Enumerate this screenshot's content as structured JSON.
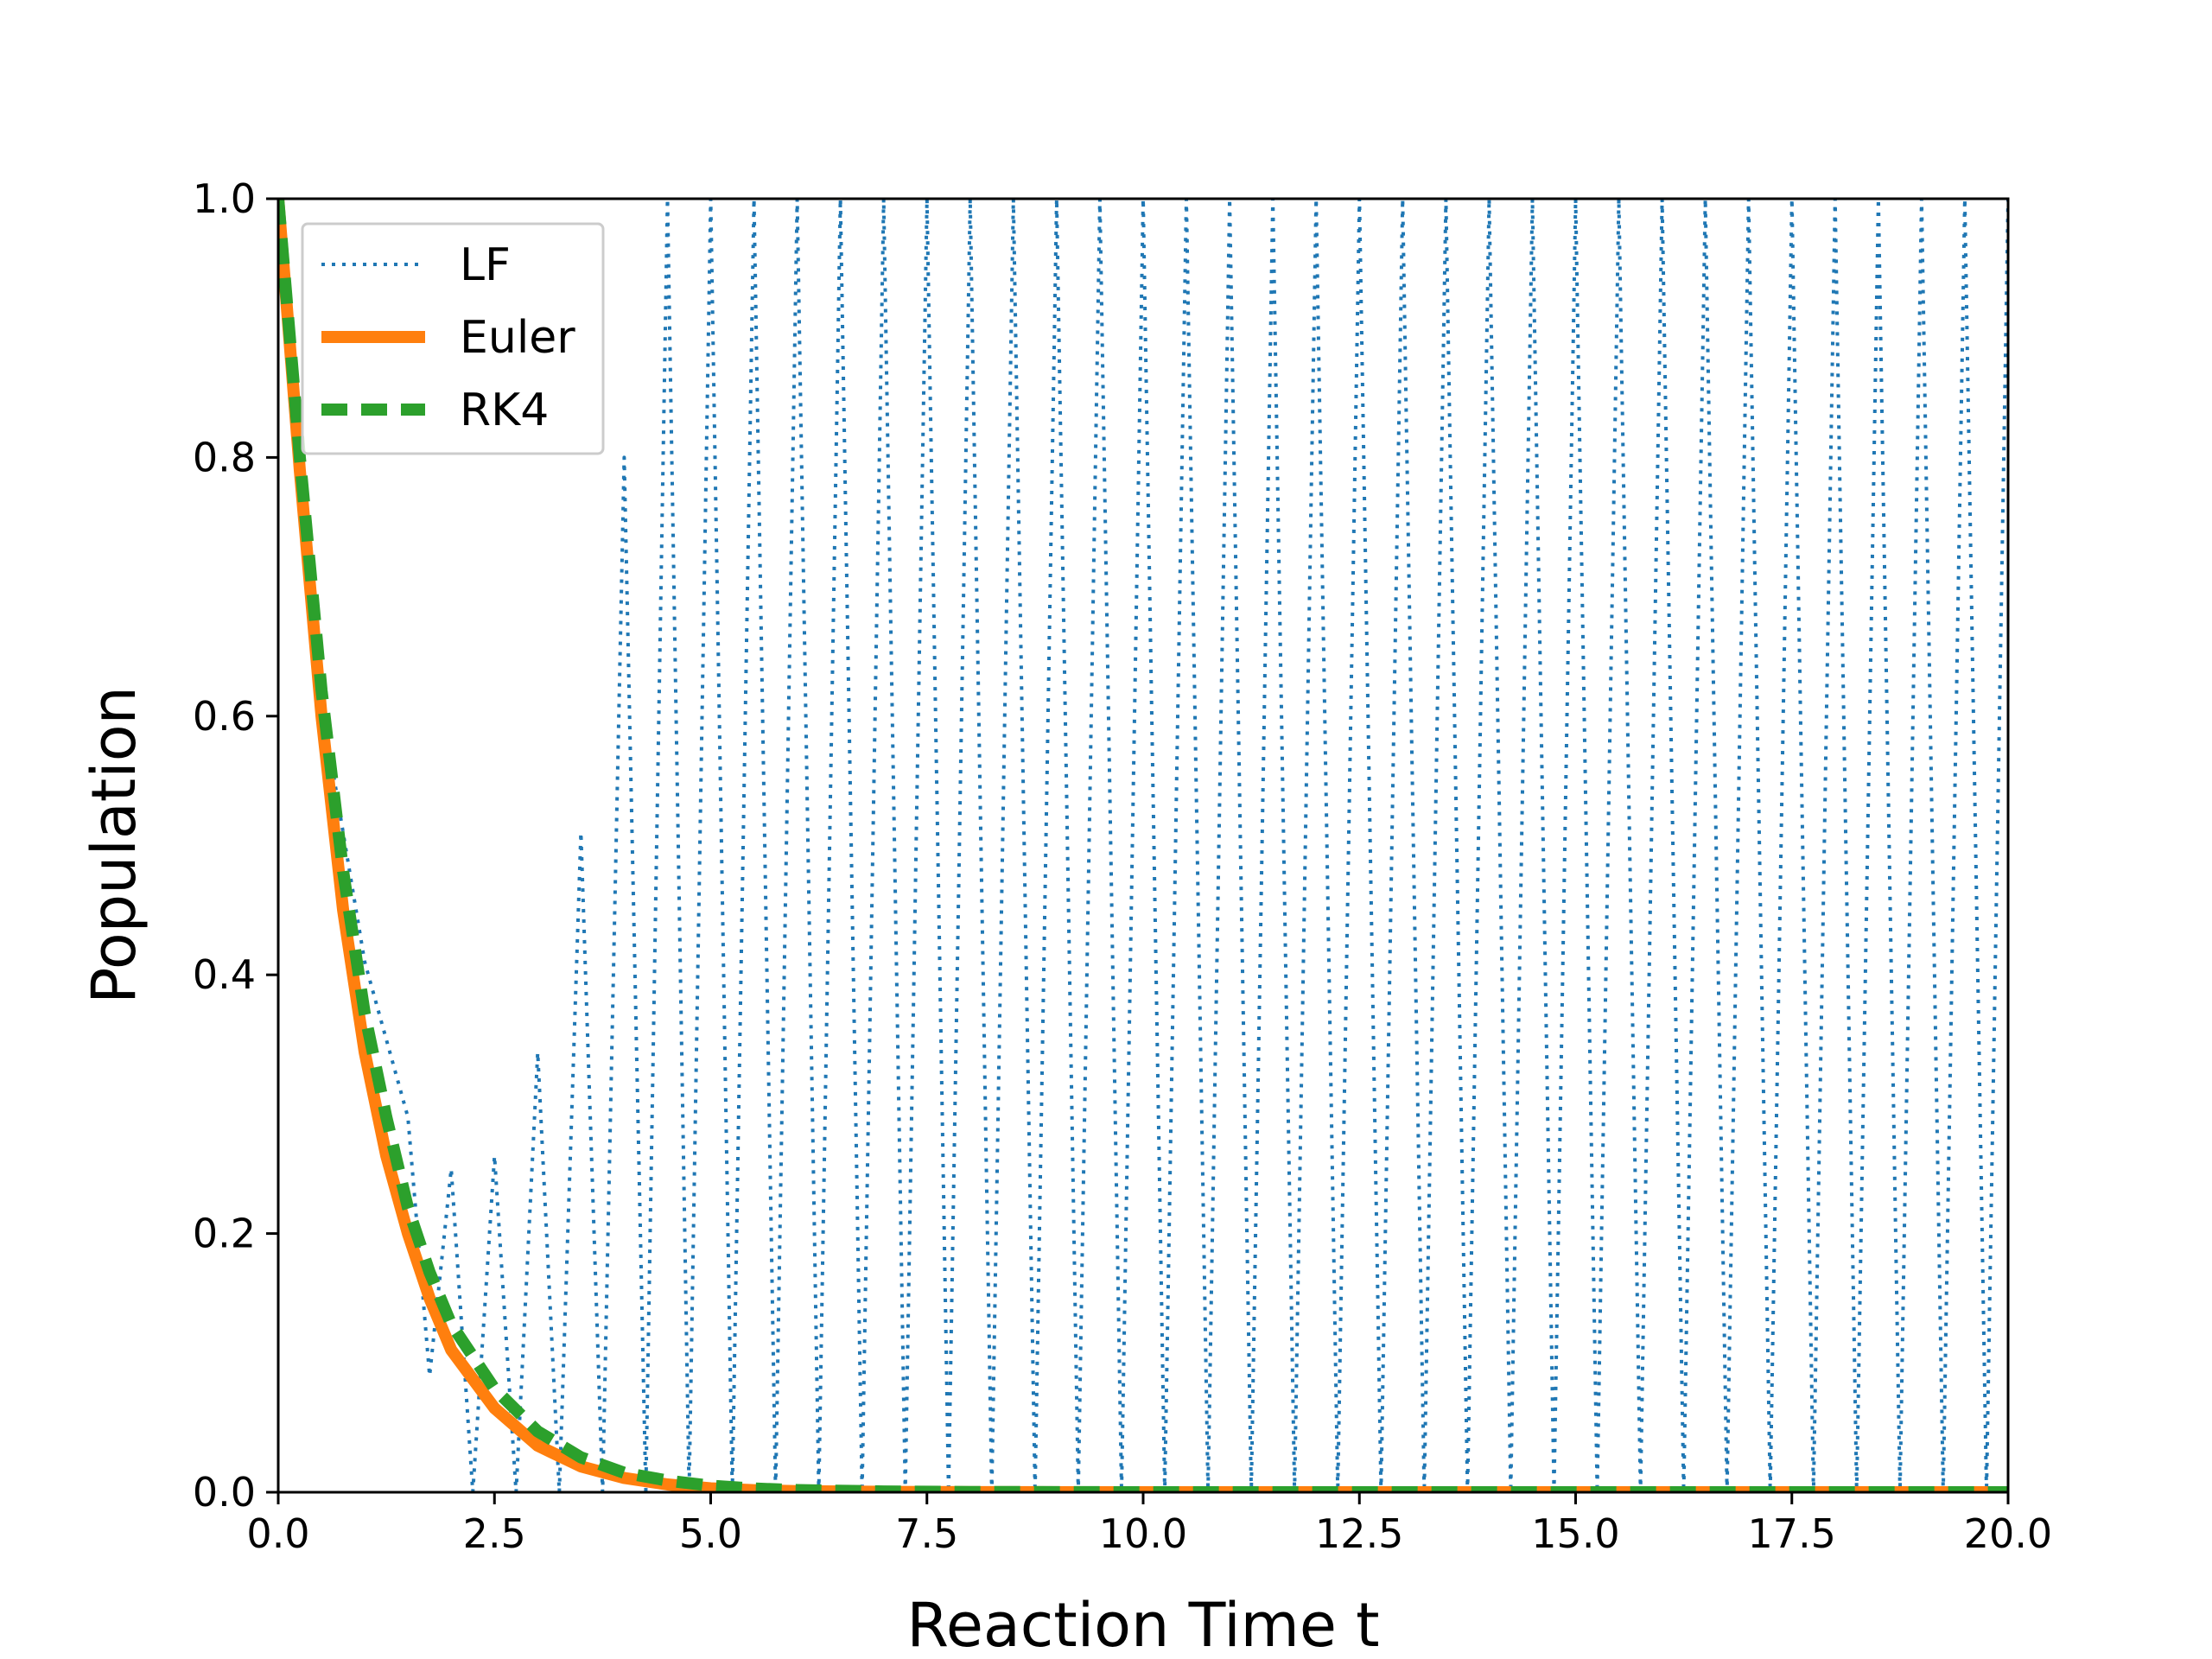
{
  "chart_data": {
    "type": "line",
    "title": "",
    "xlabel": "Reaction Time t",
    "ylabel": "Population",
    "xlim": [
      0,
      20
    ],
    "ylim": [
      0,
      1
    ],
    "xticks": [
      "0.0",
      "2.5",
      "5.0",
      "7.5",
      "10.0",
      "12.5",
      "15.0",
      "17.5",
      "20.0"
    ],
    "yticks": [
      "0.0",
      "0.2",
      "0.4",
      "0.6",
      "0.8",
      "1.0"
    ],
    "grid": false,
    "legend_position": "upper-left",
    "series": [
      {
        "name": "LF",
        "color": "#1f77b4",
        "style": "dotted",
        "x": [
          0,
          0.5,
          1.0,
          1.5,
          1.75,
          2.0,
          2.25,
          2.5,
          2.75,
          3.0,
          3.25,
          3.5,
          3.75,
          4.0,
          4.25,
          4.5,
          4.75,
          5.0,
          5.25,
          5.5,
          5.75,
          6.0,
          6.25,
          6.5,
          6.75,
          7.0,
          7.25,
          7.5,
          7.75,
          8.0,
          8.25,
          8.5,
          8.75,
          9.0,
          9.25,
          9.5,
          9.75,
          10.0,
          10.25,
          10.5,
          10.75,
          11.0,
          11.25,
          11.5,
          11.75,
          12.0,
          12.25,
          12.5,
          12.75,
          13.0,
          13.25,
          13.5,
          13.75,
          14.0,
          14.25,
          14.5,
          14.75,
          15.0,
          15.25,
          15.5,
          15.75,
          16.0,
          16.25,
          16.5,
          16.75,
          17.0,
          17.25,
          17.5,
          17.75,
          18.0,
          18.25,
          18.5,
          18.75,
          19.0,
          19.25,
          19.5,
          19.75,
          20.0
        ],
        "y": [
          1.0,
          0.61,
          0.41,
          0.29,
          0.09,
          0.25,
          0.0,
          0.26,
          0.0,
          0.34,
          0.0,
          0.51,
          0.0,
          0.8,
          0.0,
          1.0,
          0.0,
          1.0,
          0.0,
          1.0,
          0.0,
          1.0,
          0.0,
          1.0,
          0.0,
          1.0,
          0.0,
          1.0,
          0.0,
          1.0,
          0.0,
          1.0,
          0.0,
          1.0,
          0.0,
          1.0,
          0.0,
          1.0,
          0.0,
          1.0,
          0.0,
          1.0,
          0.0,
          1.0,
          0.0,
          1.0,
          0.0,
          1.0,
          0.0,
          1.0,
          0.0,
          1.0,
          0.0,
          1.0,
          0.0,
          1.0,
          0.0,
          1.0,
          0.0,
          1.0,
          0.0,
          1.0,
          0.0,
          1.0,
          0.0,
          1.0,
          0.0,
          1.0,
          0.0,
          1.0,
          0.0,
          1.0,
          0.0,
          1.0,
          0.0,
          1.0,
          0.0,
          1.0
        ]
      },
      {
        "name": "Euler",
        "color": "#ff7f0e",
        "style": "solid",
        "x": [
          0,
          0.25,
          0.5,
          0.75,
          1.0,
          1.25,
          1.5,
          1.75,
          2.0,
          2.5,
          3.0,
          3.5,
          4.0,
          4.5,
          5.0,
          5.5,
          6.0,
          7.0,
          8.0,
          10.0,
          12.5,
          15.0,
          17.5,
          20.0
        ],
        "y": [
          1.0,
          0.79,
          0.6,
          0.45,
          0.34,
          0.26,
          0.2,
          0.15,
          0.11,
          0.065,
          0.036,
          0.02,
          0.011,
          0.006,
          0.003,
          0.0016,
          0.0009,
          0.0003,
          0.0001,
          0.0,
          0.0,
          0.0,
          0.0,
          0.0
        ]
      },
      {
        "name": "RK4",
        "color": "#2ca02c",
        "style": "dashed",
        "x": [
          0,
          0.25,
          0.5,
          0.75,
          1.0,
          1.25,
          1.5,
          1.75,
          2.0,
          2.5,
          3.0,
          3.5,
          4.0,
          4.5,
          5.0,
          5.5,
          6.0,
          7.0,
          8.0,
          10.0,
          12.5,
          15.0,
          17.5,
          20.0
        ],
        "y": [
          1.0,
          0.8,
          0.62,
          0.48,
          0.37,
          0.29,
          0.22,
          0.17,
          0.13,
          0.08,
          0.047,
          0.027,
          0.015,
          0.009,
          0.005,
          0.0029,
          0.0017,
          0.0006,
          0.0002,
          0.0,
          0.0,
          0.0,
          0.0,
          0.0
        ]
      }
    ]
  }
}
